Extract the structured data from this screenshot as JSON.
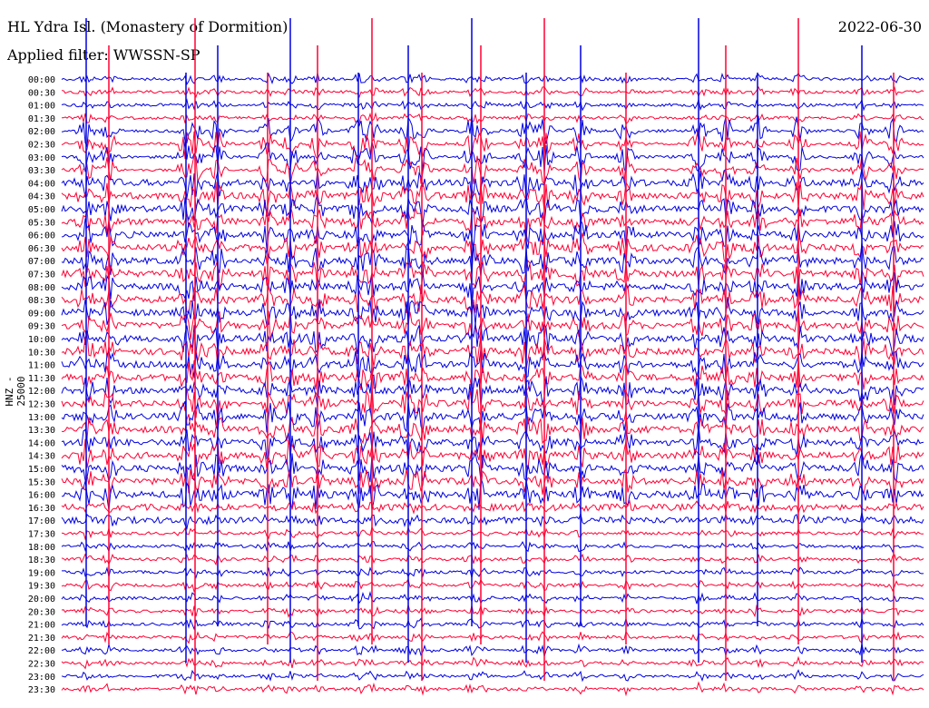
{
  "header": {
    "station": "HL Ydra Isl. (Monastery of Dormition)",
    "date": "2022-06-30",
    "filter": "Applied filter: WWSSN-SP"
  },
  "chart_data": {
    "type": "line",
    "channel_label": "HNZ - 25000",
    "row_labels": [
      "00:00",
      "00:30",
      "01:00",
      "01:30",
      "02:00",
      "02:30",
      "03:00",
      "03:30",
      "04:00",
      "04:30",
      "05:00",
      "05:30",
      "06:00",
      "06:30",
      "07:00",
      "07:30",
      "08:00",
      "08:30",
      "09:00",
      "09:30",
      "10:00",
      "10:30",
      "11:00",
      "11:30",
      "12:00",
      "12:30",
      "13:00",
      "13:30",
      "14:00",
      "14:30",
      "15:00",
      "15:30",
      "16:00",
      "16:30",
      "17:00",
      "17:30",
      "18:00",
      "18:30",
      "19:00",
      "19:30",
      "20:00",
      "20:30",
      "21:00",
      "21:30",
      "22:00",
      "22:30",
      "23:00",
      "23:30"
    ],
    "row_colors": [
      "#0000e0",
      "#ff0033"
    ],
    "spike_columns": [
      95,
      120,
      205,
      215,
      240,
      295,
      320,
      350,
      395,
      410,
      450,
      465,
      520,
      530,
      580,
      600,
      640,
      690,
      770,
      800,
      835,
      880,
      950,
      985
    ]
  }
}
